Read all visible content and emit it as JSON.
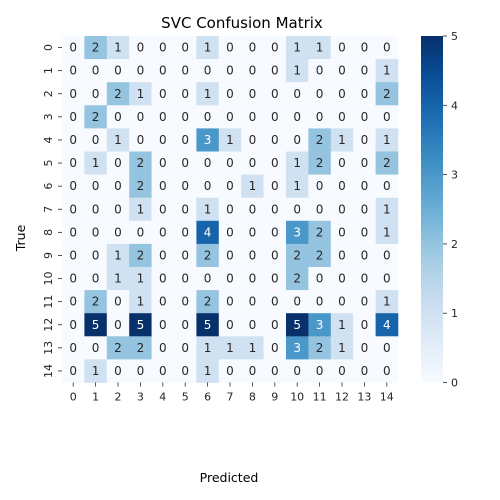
{
  "chart_data": {
    "type": "heatmap",
    "title": "SVC Confusion Matrix",
    "xlabel": "Predicted",
    "ylabel": "True",
    "x_categories": [
      "0",
      "1",
      "2",
      "3",
      "4",
      "5",
      "6",
      "7",
      "8",
      "9",
      "10",
      "11",
      "12",
      "13",
      "14"
    ],
    "y_categories": [
      "0",
      "1",
      "2",
      "3",
      "4",
      "5",
      "6",
      "7",
      "8",
      "9",
      "10",
      "11",
      "12",
      "13",
      "14"
    ],
    "values": [
      [
        0,
        2,
        1,
        0,
        0,
        0,
        1,
        0,
        0,
        0,
        1,
        1,
        0,
        0,
        0
      ],
      [
        0,
        0,
        0,
        0,
        0,
        0,
        0,
        0,
        0,
        0,
        1,
        0,
        0,
        0,
        1
      ],
      [
        0,
        0,
        2,
        1,
        0,
        0,
        1,
        0,
        0,
        0,
        0,
        0,
        0,
        0,
        2
      ],
      [
        0,
        2,
        0,
        0,
        0,
        0,
        0,
        0,
        0,
        0,
        0,
        0,
        0,
        0,
        0
      ],
      [
        0,
        0,
        1,
        0,
        0,
        0,
        3,
        1,
        0,
        0,
        0,
        2,
        1,
        0,
        1
      ],
      [
        0,
        1,
        0,
        2,
        0,
        0,
        0,
        0,
        0,
        0,
        1,
        2,
        0,
        0,
        2
      ],
      [
        0,
        0,
        0,
        2,
        0,
        0,
        0,
        0,
        1,
        0,
        1,
        0,
        0,
        0,
        0
      ],
      [
        0,
        0,
        0,
        1,
        0,
        0,
        1,
        0,
        0,
        0,
        0,
        0,
        0,
        0,
        1
      ],
      [
        0,
        0,
        0,
        0,
        0,
        0,
        4,
        0,
        0,
        0,
        3,
        2,
        0,
        0,
        1
      ],
      [
        0,
        0,
        1,
        2,
        0,
        0,
        2,
        0,
        0,
        0,
        2,
        2,
        0,
        0,
        0
      ],
      [
        0,
        0,
        1,
        1,
        0,
        0,
        0,
        0,
        0,
        0,
        2,
        0,
        0,
        0,
        0
      ],
      [
        0,
        2,
        0,
        1,
        0,
        0,
        2,
        0,
        0,
        0,
        0,
        0,
        0,
        0,
        1
      ],
      [
        0,
        5,
        0,
        5,
        0,
        0,
        5,
        0,
        0,
        0,
        5,
        3,
        1,
        0,
        4
      ],
      [
        0,
        0,
        2,
        2,
        0,
        0,
        1,
        1,
        1,
        0,
        3,
        2,
        1,
        0,
        0
      ],
      [
        0,
        1,
        0,
        0,
        0,
        0,
        1,
        0,
        0,
        0,
        0,
        0,
        0,
        0,
        0
      ]
    ],
    "colorbar": {
      "min": 0,
      "max": 5,
      "ticks": [
        "0",
        "1",
        "2",
        "3",
        "4",
        "5"
      ]
    },
    "colormap": "Blues",
    "colors": {
      "low": "#f7fbff",
      "high": "#08306b",
      "light_text": "#ffffff",
      "dark_text": "#262626"
    }
  }
}
